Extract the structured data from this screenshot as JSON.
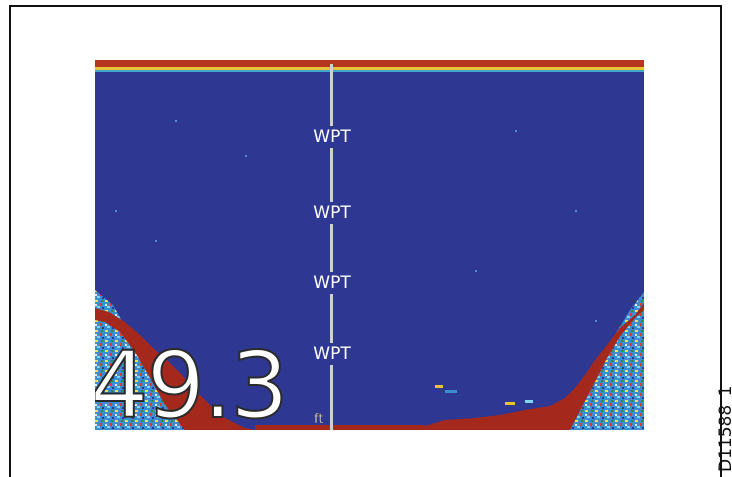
{
  "figure_id": "D11588_1",
  "sonar": {
    "waypoint_labels": [
      "WPT",
      "WPT",
      "WPT",
      "WPT"
    ],
    "depth_value": "49.3",
    "depth_unit": "ft"
  },
  "colors": {
    "water": "#2e3892",
    "bottom_return": "#a5281c",
    "surface_return": "#b5361e",
    "waypoint_line": "#d0d0d0",
    "text": "#ffffff"
  }
}
